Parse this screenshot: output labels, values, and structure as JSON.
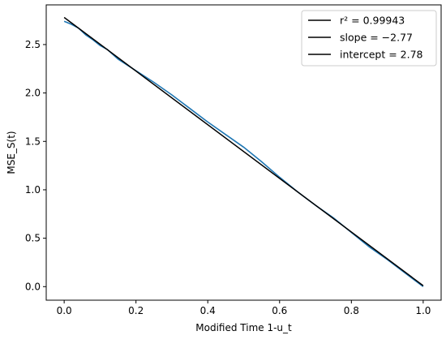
{
  "chart_data": {
    "type": "line",
    "title": "",
    "xlabel": "Modified Time 1-u_t",
    "ylabel": "MSE_S(t)",
    "xlim": [
      -0.05,
      1.05
    ],
    "ylim": [
      -0.14,
      2.91
    ],
    "xticks": [
      0.0,
      0.2,
      0.4,
      0.6,
      0.8,
      1.0
    ],
    "xtick_labels": [
      "0.0",
      "0.2",
      "0.4",
      "0.6",
      "0.8",
      "1.0"
    ],
    "yticks": [
      0.0,
      0.5,
      1.0,
      1.5,
      2.0,
      2.5
    ],
    "ytick_labels": [
      "0.0",
      "0.5",
      "1.0",
      "1.5",
      "2.0",
      "2.5"
    ],
    "grid": false,
    "legend_position": "top-right",
    "legend": [
      "r² = 0.99943",
      "slope = −2.77",
      "intercept = 2.78"
    ],
    "series": [
      {
        "color": "#1f77b4",
        "x": [
          0.0,
          0.02,
          0.04,
          0.06,
          0.08,
          0.1,
          0.12,
          0.15,
          0.2,
          0.25,
          0.3,
          0.35,
          0.4,
          0.45,
          0.5,
          0.55,
          0.6,
          0.65,
          0.7,
          0.75,
          0.8,
          0.85,
          0.9,
          0.95,
          1.0
        ],
        "y": [
          2.74,
          2.71,
          2.67,
          2.6,
          2.55,
          2.49,
          2.45,
          2.35,
          2.23,
          2.11,
          1.98,
          1.84,
          1.7,
          1.57,
          1.44,
          1.29,
          1.13,
          0.98,
          0.84,
          0.71,
          0.56,
          0.41,
          0.28,
          0.14,
          0.0
        ]
      },
      {
        "name": "fit",
        "color": "#000000",
        "x": [
          0.0,
          1.0
        ],
        "y": [
          2.78,
          0.01
        ]
      }
    ]
  }
}
